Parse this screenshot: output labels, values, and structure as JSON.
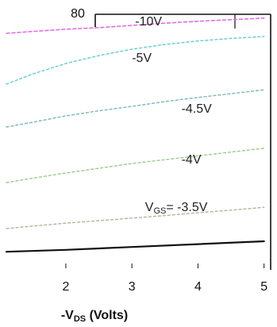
{
  "chart_data": {
    "type": "line",
    "xlabel": {
      "prefix": "-V",
      "sub": "DS",
      "suffix": " (Volts)"
    },
    "xlim": [
      1.1,
      5.1
    ],
    "ylim": [
      0,
      80
    ],
    "x_ticks": [
      "2",
      "3",
      "4",
      "5"
    ],
    "x_tick_values": [
      2,
      3,
      4,
      5
    ],
    "y_ticks": [
      "80"
    ],
    "y_tick_values": [
      80
    ],
    "curve_labels": [
      {
        "text": "-10V",
        "x": 3.05,
        "y": 76.5
      },
      {
        "text": "-5V",
        "x": 3.0,
        "y": 65
      },
      {
        "text": "-4.5V",
        "x": 3.75,
        "y": 49
      },
      {
        "text": "-4V",
        "x": 3.75,
        "y": 33
      },
      {
        "prefix": "V",
        "sub": "GS",
        "suffix": "= -3.5V",
        "x": 3.2,
        "y": 18
      }
    ],
    "series": [
      {
        "values": [
          [
            1.1,
            74
          ],
          [
            1.5,
            74.6
          ],
          [
            2.0,
            75.3
          ],
          [
            2.5,
            75.8
          ],
          [
            3.0,
            76.5
          ],
          [
            3.5,
            77.2
          ],
          [
            4.0,
            77.8
          ],
          [
            4.5,
            78.3
          ],
          [
            5.0,
            78.8
          ]
        ],
        "color": "#e070e0",
        "dash": "4 3",
        "width": 1.6
      },
      {
        "values": [
          [
            1.1,
            58
          ],
          [
            1.5,
            61.2
          ],
          [
            2.0,
            64.5
          ],
          [
            2.5,
            67.0
          ],
          [
            3.0,
            69.0
          ],
          [
            3.5,
            70.5
          ],
          [
            4.0,
            71.6
          ],
          [
            4.5,
            72.4
          ],
          [
            5.0,
            73.0
          ]
        ],
        "color": "#66cccc",
        "dash": "3 3",
        "width": 1.4
      },
      {
        "values": [
          [
            1.1,
            44.5
          ],
          [
            1.5,
            46.0
          ],
          [
            2.0,
            48.0
          ],
          [
            2.5,
            49.6
          ],
          [
            3.0,
            51.0
          ],
          [
            3.5,
            52.5
          ],
          [
            4.0,
            53.8
          ],
          [
            4.5,
            55.0
          ],
          [
            5.0,
            56.2
          ]
        ],
        "color": "#7ab8b8",
        "dash": "3 3",
        "width": 1.4
      },
      {
        "values": [
          [
            1.1,
            27.0
          ],
          [
            1.5,
            28.4
          ],
          [
            2.0,
            30.0
          ],
          [
            2.5,
            31.5
          ],
          [
            3.0,
            33.0
          ],
          [
            3.5,
            34.2
          ],
          [
            4.0,
            35.4
          ],
          [
            4.5,
            36.6
          ],
          [
            5.0,
            37.8
          ]
        ],
        "color": "#9acc88",
        "dash": "3 3",
        "width": 1.4
      },
      {
        "values": [
          [
            1.1,
            12.5
          ],
          [
            1.5,
            13.3
          ],
          [
            2.0,
            14.2
          ],
          [
            2.5,
            15.0
          ],
          [
            3.0,
            15.8
          ],
          [
            3.5,
            16.6
          ],
          [
            4.0,
            17.5
          ],
          [
            4.5,
            18.3
          ],
          [
            5.0,
            19.2
          ]
        ],
        "color": "#b4b4a0",
        "dash": "3 3",
        "width": 1.4
      },
      {
        "values": [
          [
            1.1,
            5.2
          ],
          [
            2.0,
            5.8
          ],
          [
            3.0,
            6.7
          ],
          [
            4.0,
            7.6
          ],
          [
            5.0,
            8.5
          ]
        ],
        "color": "#111111",
        "dash": "",
        "width": 2.2
      }
    ],
    "grid": false,
    "legend": "none"
  }
}
